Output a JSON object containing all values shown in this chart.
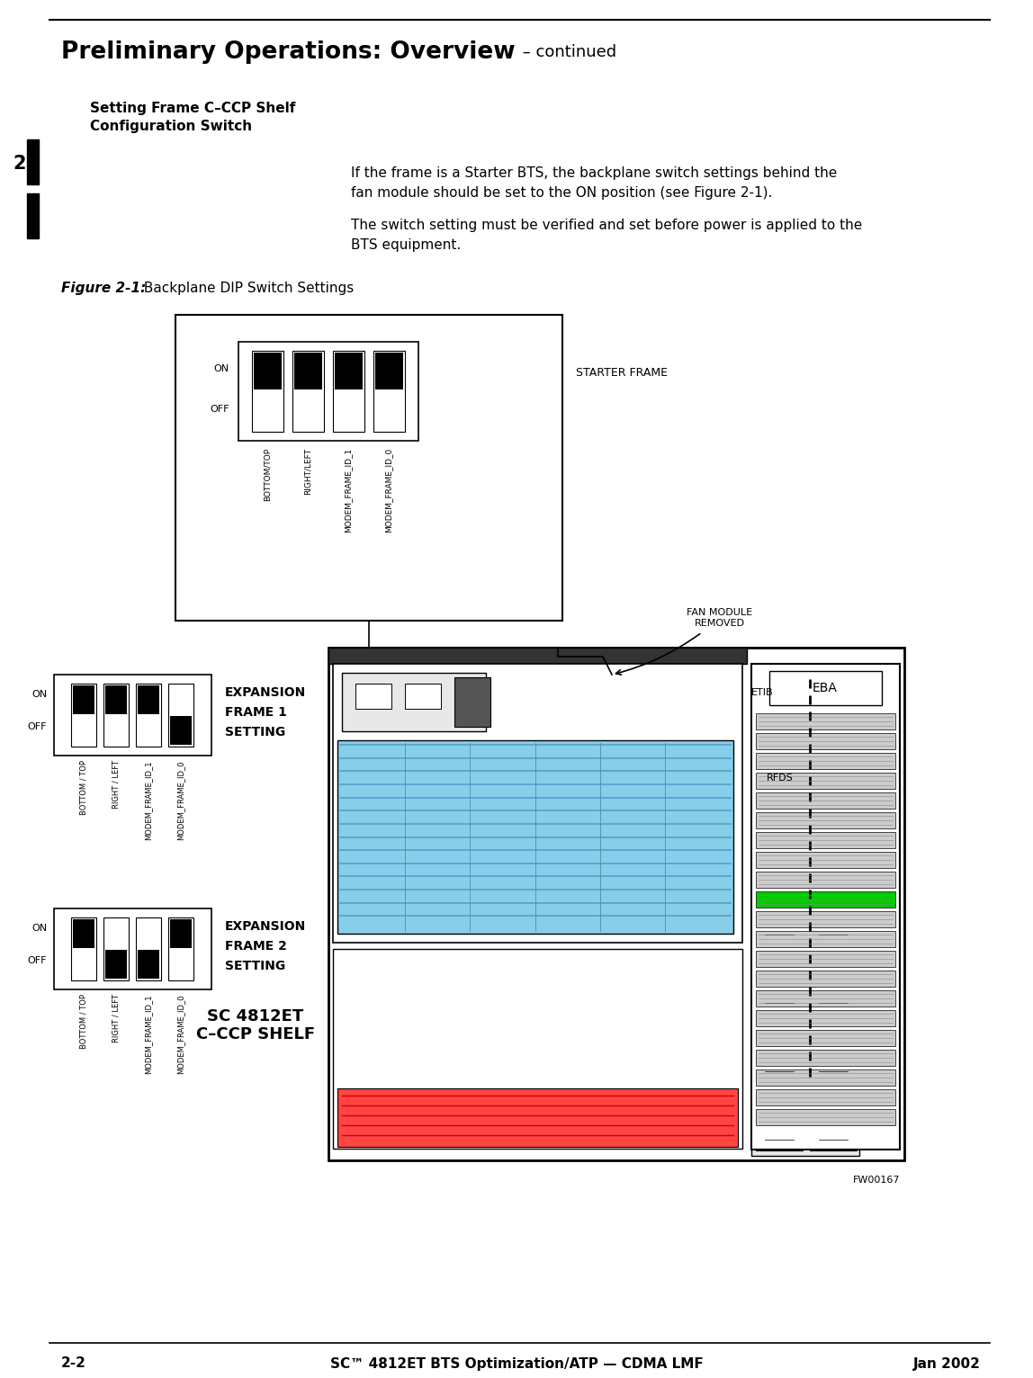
{
  "title_bold": "Preliminary Operations: Overview",
  "title_continued": " – continued",
  "section_title_line1": "Setting Frame C–CCP Shelf",
  "section_title_line2": "Configuration Switch",
  "chapter_num": "2",
  "body_text1_l1": "If the frame is a Starter BTS, the backplane switch settings behind the",
  "body_text1_l2": "fan module should be set to the ON position (see Figure 2-1).",
  "body_text2_l1": "The switch setting must be verified and set before power is applied to the",
  "body_text2_l2": "BTS equipment.",
  "figure_label": "Figure 2-1:",
  "figure_title": " Backplane DIP Switch Settings",
  "fig_ref": "FW00167",
  "footer_left": "2-2",
  "footer_center": "SC™ 4812ET BTS Optimization/ATP — CDMA LMF",
  "footer_right": "Jan 2002",
  "bg_color": "#ffffff"
}
